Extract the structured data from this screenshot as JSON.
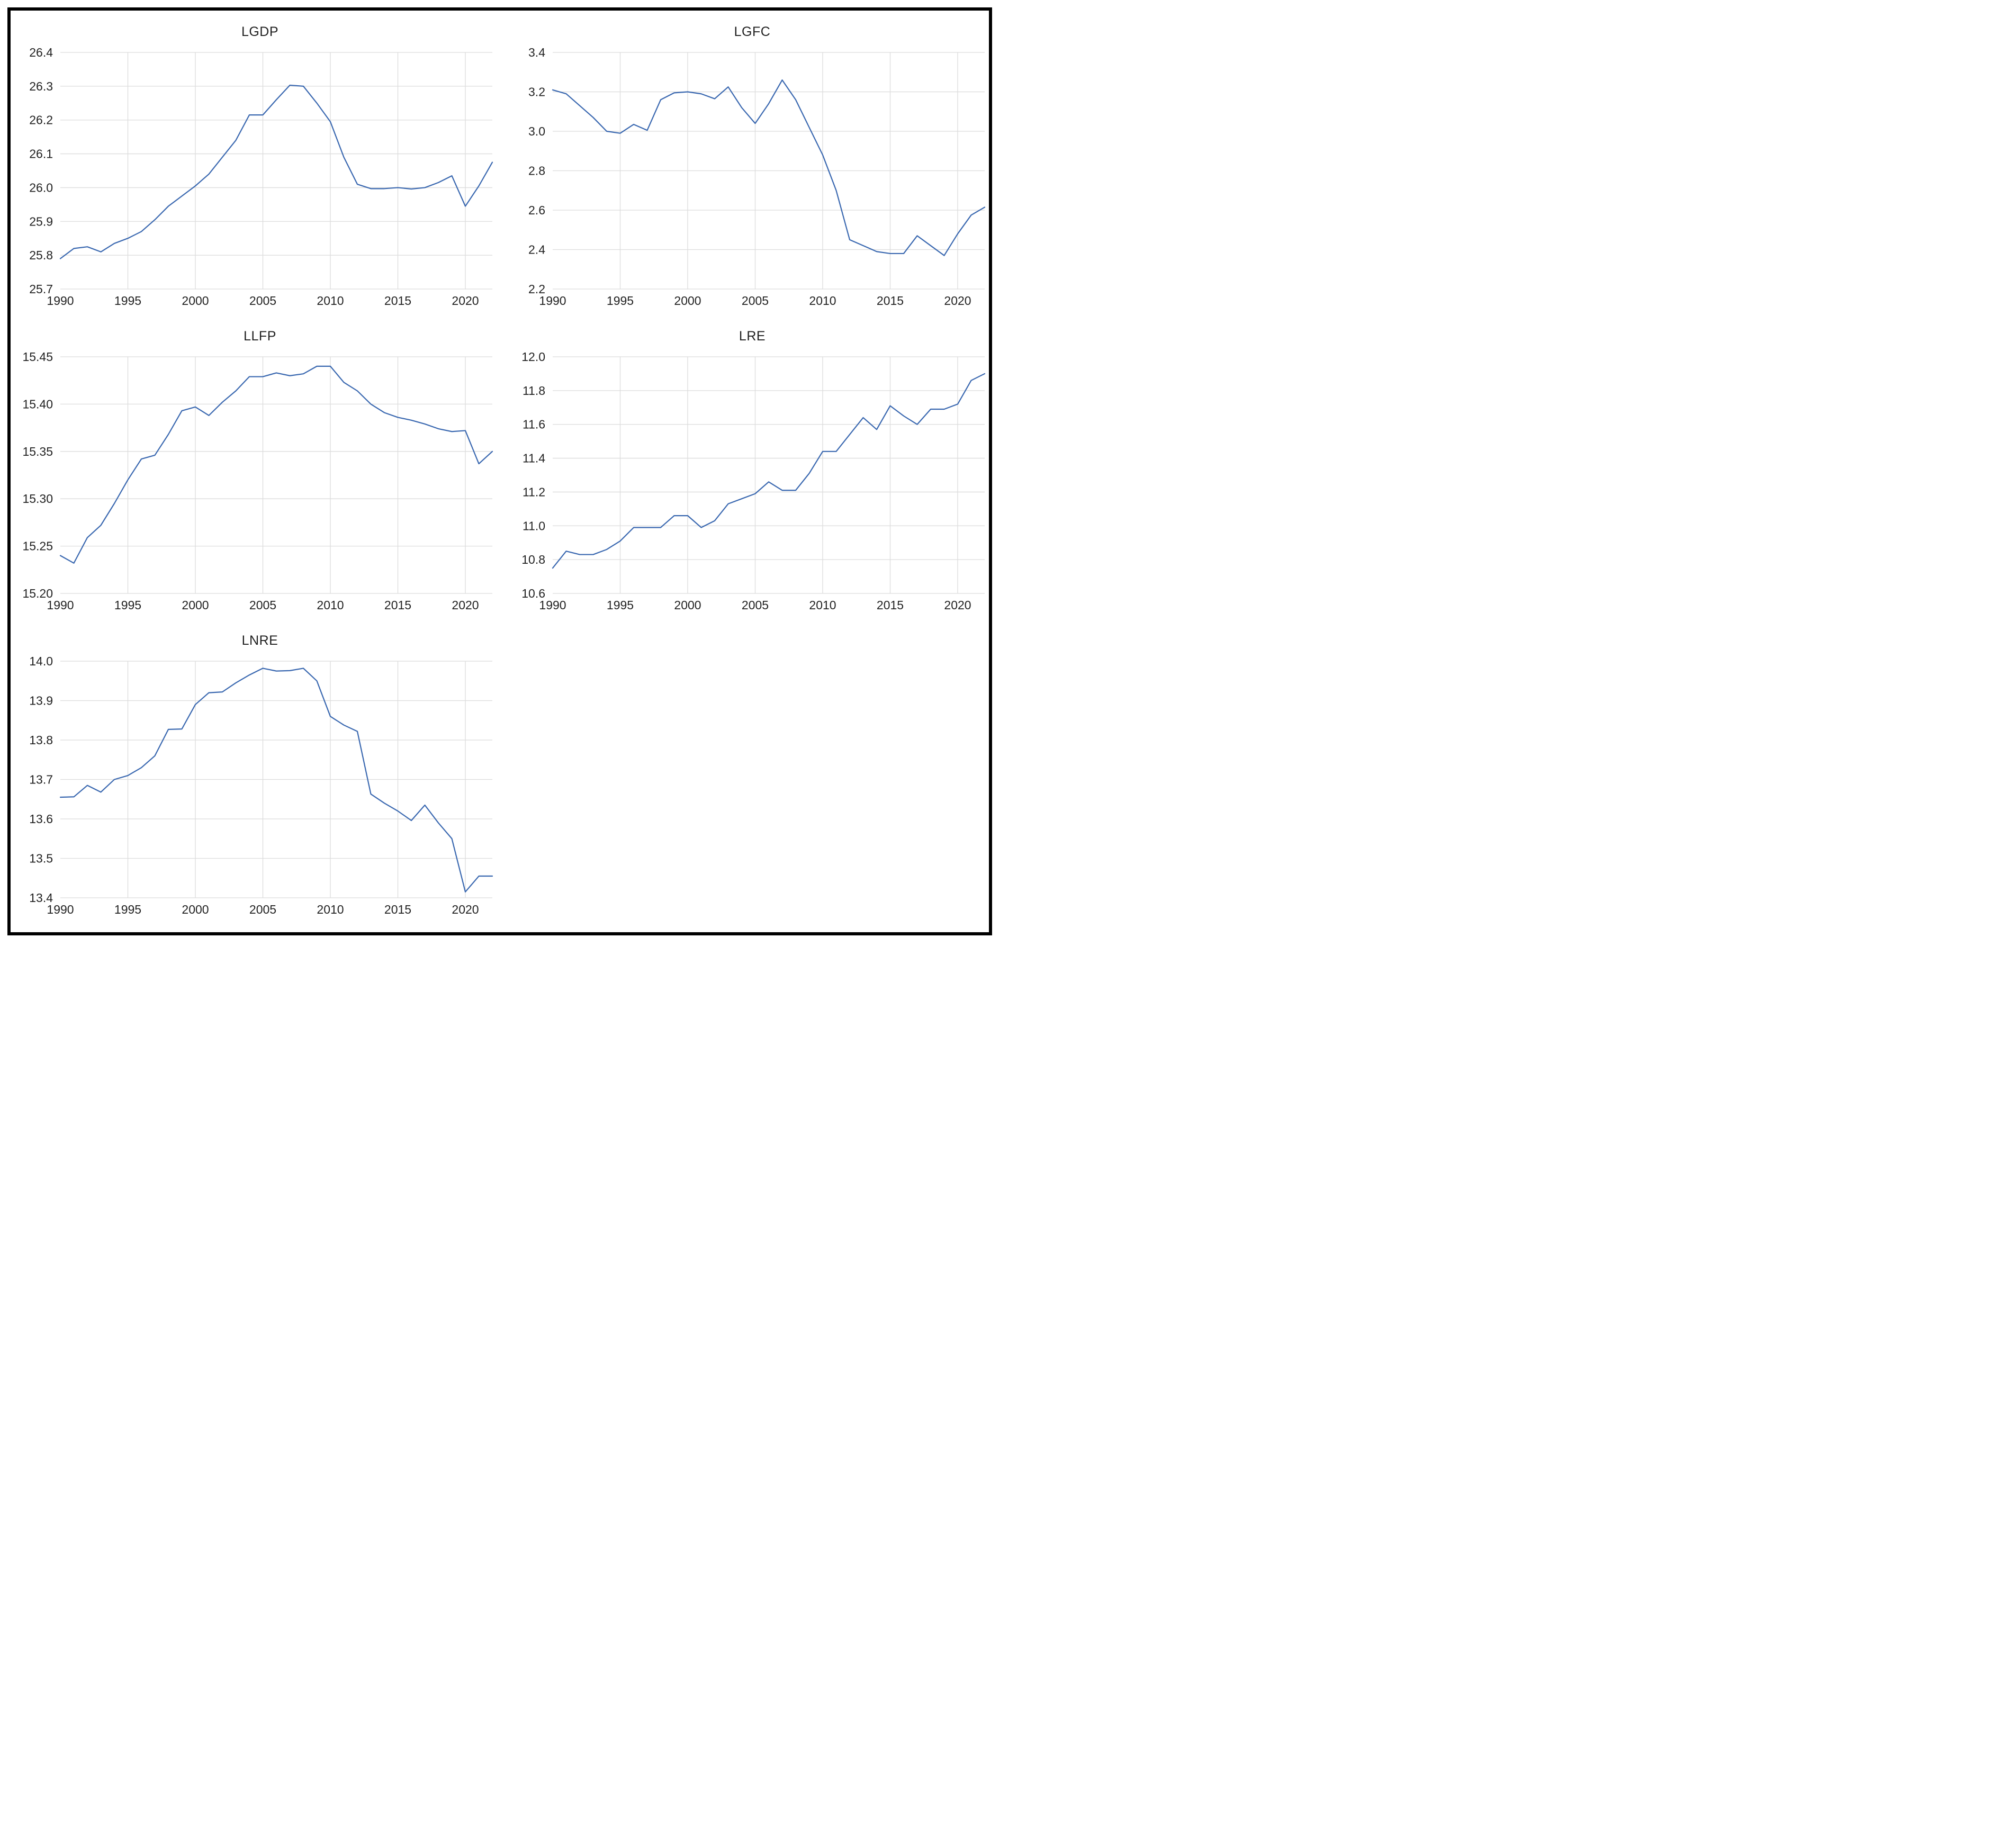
{
  "colors": {
    "line": "#3a68b0",
    "grid": "#dcdcdc",
    "text": "#222222",
    "frame": "#000000",
    "background": "#ffffff"
  },
  "chart_data": [
    {
      "type": "line",
      "title": "LGDP",
      "x": [
        1990,
        1991,
        1992,
        1993,
        1994,
        1995,
        1996,
        1997,
        1998,
        1999,
        2000,
        2001,
        2002,
        2003,
        2004,
        2005,
        2006,
        2007,
        2008,
        2009,
        2010,
        2011,
        2012,
        2013,
        2014,
        2015,
        2016,
        2017,
        2018,
        2019,
        2020,
        2021,
        2022
      ],
      "values": [
        25.79,
        25.82,
        25.825,
        25.81,
        25.835,
        25.85,
        25.87,
        25.905,
        25.945,
        25.975,
        26.005,
        26.04,
        26.09,
        26.14,
        26.215,
        26.215,
        26.26,
        26.303,
        26.3,
        26.25,
        26.195,
        26.09,
        26.01,
        25.997,
        25.997,
        26.0,
        25.996,
        26.0,
        26.015,
        26.035,
        25.945,
        26.005,
        26.075
      ],
      "xlim": [
        1990,
        2022
      ],
      "ylim": [
        25.7,
        26.4
      ],
      "y_step": 0.1,
      "y_decimals": 1,
      "y_tick_labels": [
        "26.4",
        "26.3",
        "26.2",
        "26.1",
        "26.0",
        "25.9",
        "25.8",
        "25.7"
      ],
      "x_tick_labels": [
        "1990",
        "1995",
        "2000",
        "2005",
        "2010",
        "2015",
        "2020"
      ],
      "x_ticks": [
        1990,
        1995,
        2000,
        2005,
        2010,
        2015,
        2020
      ],
      "grid": true,
      "legend": "none"
    },
    {
      "type": "line",
      "title": "LGFC",
      "x": [
        1990,
        1991,
        1992,
        1993,
        1994,
        1995,
        1996,
        1997,
        1998,
        1999,
        2000,
        2001,
        2002,
        2003,
        2004,
        2005,
        2006,
        2007,
        2008,
        2009,
        2010,
        2011,
        2012,
        2013,
        2014,
        2015,
        2016,
        2017,
        2018,
        2019,
        2020,
        2021,
        2022
      ],
      "values": [
        3.21,
        3.19,
        3.13,
        3.07,
        3.0,
        2.99,
        3.035,
        3.005,
        3.16,
        3.195,
        3.2,
        3.19,
        3.165,
        3.225,
        3.12,
        3.04,
        3.14,
        3.26,
        3.16,
        3.02,
        2.88,
        2.7,
        2.45,
        2.42,
        2.39,
        2.38,
        2.38,
        2.47,
        2.42,
        2.37,
        2.48,
        2.575,
        2.615
      ],
      "xlim": [
        1990,
        2022
      ],
      "ylim": [
        2.2,
        3.4
      ],
      "y_step": 0.2,
      "y_decimals": 1,
      "y_tick_labels": [
        "3.4",
        "3.2",
        "3.0",
        "2.8",
        "2.6",
        "2.4",
        "2.2"
      ],
      "x_tick_labels": [
        "1990",
        "1995",
        "2000",
        "2005",
        "2010",
        "2015",
        "2020"
      ],
      "x_ticks": [
        1990,
        1995,
        2000,
        2005,
        2010,
        2015,
        2020
      ],
      "grid": true,
      "legend": "none"
    },
    {
      "type": "line",
      "title": "LLFP",
      "x": [
        1990,
        1991,
        1992,
        1993,
        1994,
        1995,
        1996,
        1997,
        1998,
        1999,
        2000,
        2001,
        2002,
        2003,
        2004,
        2005,
        2006,
        2007,
        2008,
        2009,
        2010,
        2011,
        2012,
        2013,
        2014,
        2015,
        2016,
        2017,
        2018,
        2019,
        2020,
        2021,
        2022
      ],
      "values": [
        15.24,
        15.232,
        15.259,
        15.272,
        15.295,
        15.32,
        15.342,
        15.346,
        15.368,
        15.393,
        15.397,
        15.388,
        15.402,
        15.414,
        15.429,
        15.429,
        15.433,
        15.43,
        15.432,
        15.44,
        15.44,
        15.423,
        15.414,
        15.4,
        15.391,
        15.386,
        15.383,
        15.379,
        15.374,
        15.371,
        15.372,
        15.337,
        15.35
      ],
      "xlim": [
        1990,
        2022
      ],
      "ylim": [
        15.2,
        15.45
      ],
      "y_step": 0.05,
      "y_decimals": 2,
      "y_tick_labels": [
        "15.45",
        "15.40",
        "15.35",
        "15.30",
        "15.25",
        "15.20"
      ],
      "x_tick_labels": [
        "1990",
        "1995",
        "2000",
        "2005",
        "2010",
        "2015",
        "2020"
      ],
      "x_ticks": [
        1990,
        1995,
        2000,
        2005,
        2010,
        2015,
        2020
      ],
      "grid": true,
      "legend": "none"
    },
    {
      "type": "line",
      "title": "LRE",
      "x": [
        1990,
        1991,
        1992,
        1993,
        1994,
        1995,
        1996,
        1997,
        1998,
        1999,
        2000,
        2001,
        2002,
        2003,
        2004,
        2005,
        2006,
        2007,
        2008,
        2009,
        2010,
        2011,
        2012,
        2013,
        2014,
        2015,
        2016,
        2017,
        2018,
        2019,
        2020,
        2021,
        2022
      ],
      "values": [
        10.75,
        10.85,
        10.83,
        10.83,
        10.86,
        10.91,
        10.99,
        10.99,
        10.99,
        11.06,
        11.06,
        10.99,
        11.03,
        11.13,
        11.16,
        11.19,
        11.26,
        11.21,
        11.21,
        11.31,
        11.44,
        11.44,
        11.54,
        11.64,
        11.57,
        11.71,
        11.65,
        11.6,
        11.69,
        11.69,
        11.72,
        11.86,
        11.9
      ],
      "xlim": [
        1990,
        2022
      ],
      "ylim": [
        10.6,
        12.0
      ],
      "y_step": 0.2,
      "y_decimals": 1,
      "y_tick_labels": [
        "12.0",
        "11.8",
        "11.6",
        "11.4",
        "11.2",
        "11.0",
        "10.8",
        "10.6"
      ],
      "x_tick_labels": [
        "1990",
        "1995",
        "2000",
        "2005",
        "2010",
        "2015",
        "2020"
      ],
      "x_ticks": [
        1990,
        1995,
        2000,
        2005,
        2010,
        2015,
        2020
      ],
      "grid": true,
      "legend": "none"
    },
    {
      "type": "line",
      "title": "LNRE",
      "x": [
        1990,
        1991,
        1992,
        1993,
        1994,
        1995,
        1996,
        1997,
        1998,
        1999,
        2000,
        2001,
        2002,
        2003,
        2004,
        2005,
        2006,
        2007,
        2008,
        2009,
        2010,
        2011,
        2012,
        2013,
        2014,
        2015,
        2016,
        2017,
        2018,
        2019,
        2020,
        2021,
        2022
      ],
      "values": [
        13.655,
        13.656,
        13.685,
        13.668,
        13.7,
        13.71,
        13.73,
        13.76,
        13.827,
        13.828,
        13.89,
        13.92,
        13.922,
        13.945,
        13.965,
        13.982,
        13.975,
        13.976,
        13.982,
        13.95,
        13.86,
        13.838,
        13.822,
        13.663,
        13.64,
        13.62,
        13.596,
        13.635,
        13.59,
        13.55,
        13.415,
        13.455,
        13.455
      ],
      "xlim": [
        1990,
        2022
      ],
      "ylim": [
        13.4,
        14.0
      ],
      "y_step": 0.1,
      "y_decimals": 1,
      "y_tick_labels": [
        "14.0",
        "13.9",
        "13.8",
        "13.7",
        "13.6",
        "13.5",
        "13.4"
      ],
      "x_tick_labels": [
        "1990",
        "1995",
        "2000",
        "2005",
        "2010",
        "2015",
        "2020"
      ],
      "x_ticks": [
        1990,
        1995,
        2000,
        2005,
        2010,
        2015,
        2020
      ],
      "grid": true,
      "legend": "none"
    }
  ]
}
